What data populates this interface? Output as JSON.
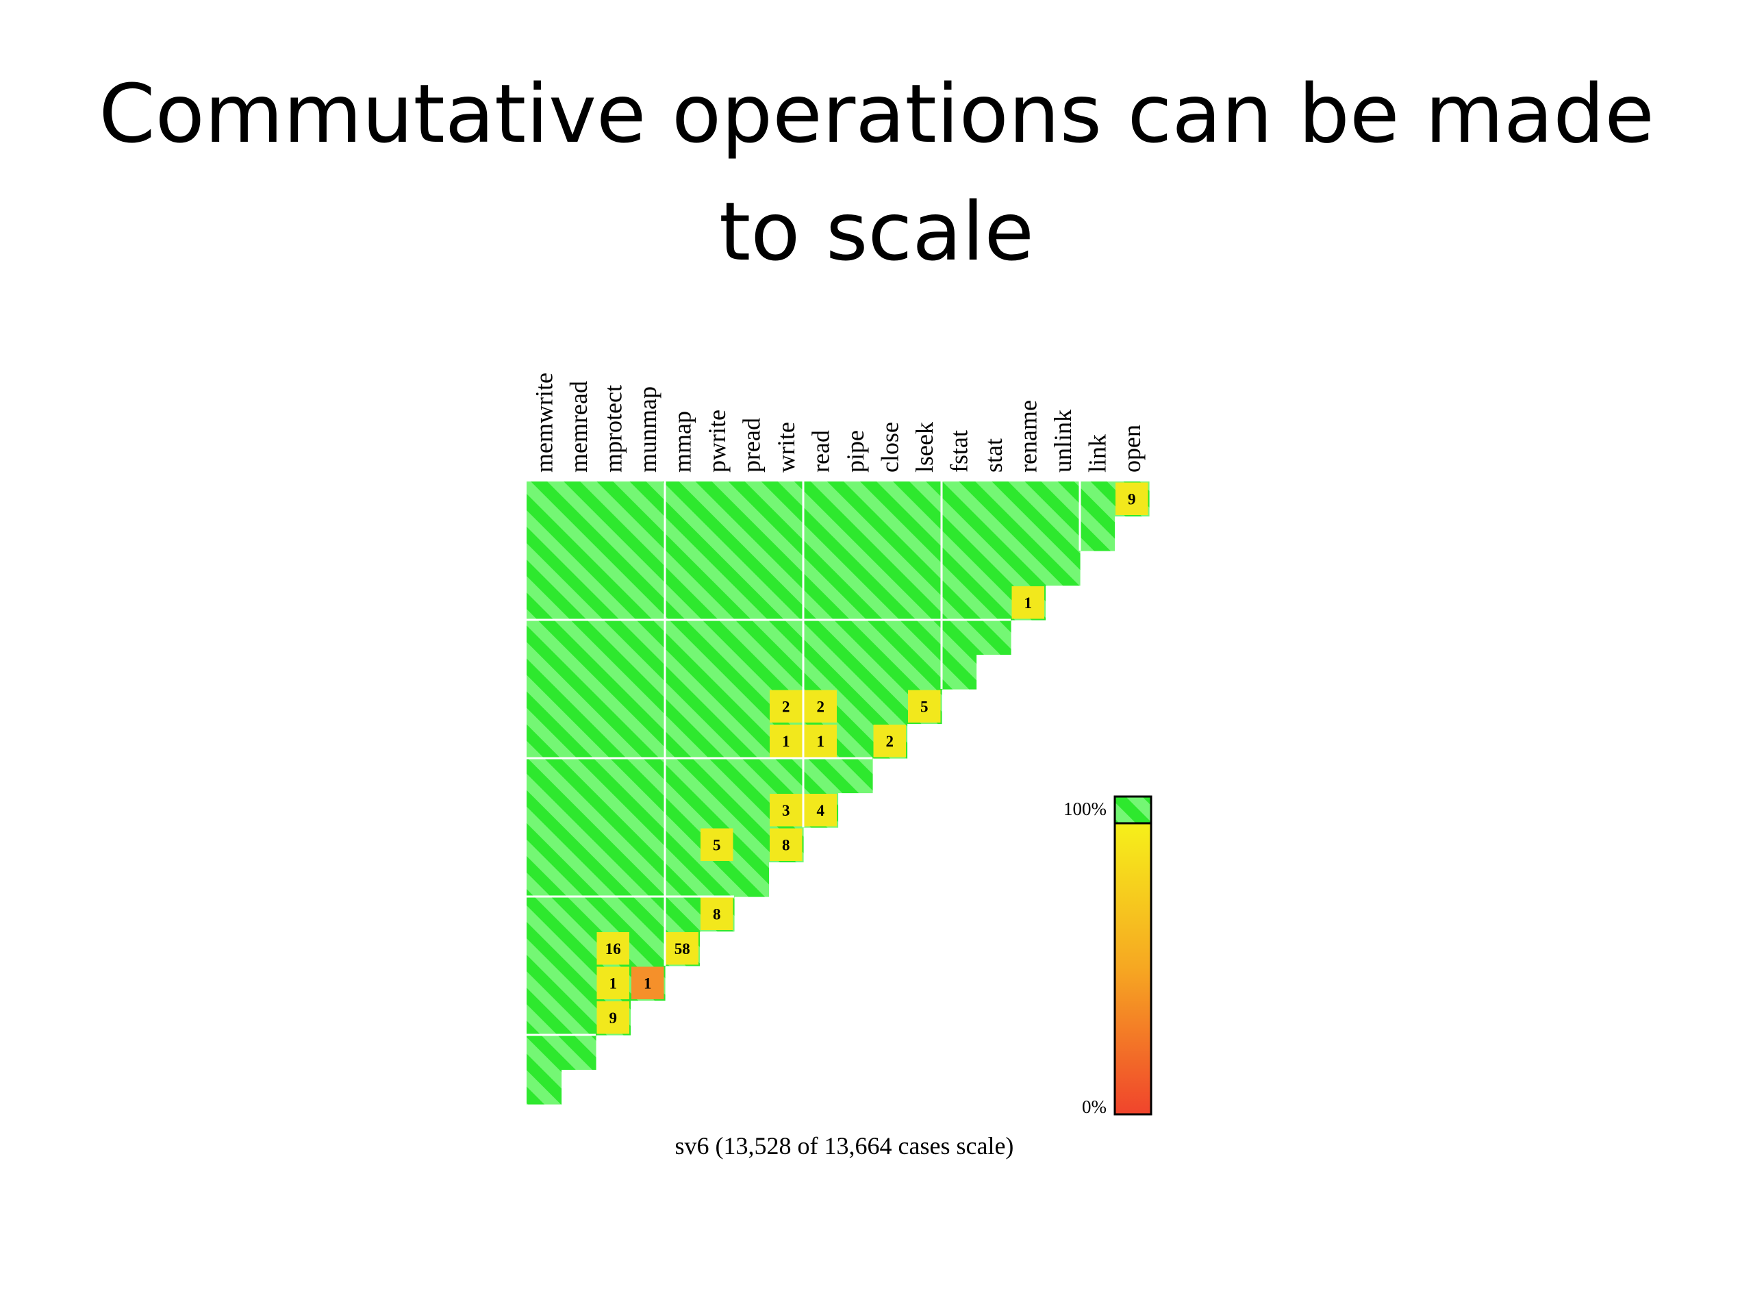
{
  "slide": {
    "title_line1": "Commutative operations can be made",
    "title_line2": "to scale"
  },
  "chart_data": {
    "type": "heatmap",
    "title": "",
    "caption": "sv6 (13,528 of 13,664 cases scale)",
    "columns": [
      "memwrite",
      "memread",
      "mprotect",
      "munmap",
      "mmap",
      "pwrite",
      "pread",
      "write",
      "read",
      "pipe",
      "close",
      "lseek",
      "fstat",
      "stat",
      "rename",
      "unlink",
      "link",
      "open"
    ],
    "rows_top_to_bottom": [
      "open",
      "link",
      "unlink",
      "rename",
      "stat",
      "fstat",
      "lseek",
      "close",
      "pipe",
      "read",
      "write",
      "pread",
      "pwrite",
      "mmap",
      "munmap",
      "mprotect",
      "memread",
      "memwrite"
    ],
    "default_cell": "scales (100%)",
    "non_scaling_cells": [
      {
        "row": "open",
        "column": "open",
        "count": 9,
        "color": "#f2e81c"
      },
      {
        "row": "rename",
        "column": "rename",
        "count": 1,
        "color": "#f2e81c"
      },
      {
        "row": "lseek",
        "column": "write",
        "count": 2,
        "color": "#f2e81c"
      },
      {
        "row": "lseek",
        "column": "read",
        "count": 2,
        "color": "#f2e81c"
      },
      {
        "row": "lseek",
        "column": "lseek",
        "count": 5,
        "color": "#f2e81c"
      },
      {
        "row": "close",
        "column": "write",
        "count": 1,
        "color": "#f2e81c"
      },
      {
        "row": "close",
        "column": "read",
        "count": 1,
        "color": "#f2e81c"
      },
      {
        "row": "close",
        "column": "close",
        "count": 2,
        "color": "#f2e81c"
      },
      {
        "row": "read",
        "column": "write",
        "count": 3,
        "color": "#f2e81c"
      },
      {
        "row": "read",
        "column": "read",
        "count": 4,
        "color": "#f2e81c"
      },
      {
        "row": "write",
        "column": "pwrite",
        "count": 5,
        "color": "#f2e81c"
      },
      {
        "row": "write",
        "column": "write",
        "count": 8,
        "color": "#f2e81c"
      },
      {
        "row": "pwrite",
        "column": "pwrite",
        "count": 8,
        "color": "#f2e81c"
      },
      {
        "row": "mmap",
        "column": "mprotect",
        "count": 16,
        "color": "#f2e81c"
      },
      {
        "row": "mmap",
        "column": "mmap",
        "count": 58,
        "color": "#f2e81c"
      },
      {
        "row": "munmap",
        "column": "mprotect",
        "count": 1,
        "color": "#f2e81c"
      },
      {
        "row": "munmap",
        "column": "munmap",
        "count": 1,
        "color": "#f5902a"
      },
      {
        "row": "mprotect",
        "column": "mprotect",
        "count": 9,
        "color": "#f2e81c"
      }
    ],
    "color_scale": {
      "top_label": "100%",
      "bottom_label": "0%",
      "scale_color": "#2ee82e",
      "colors_top_to_bottom": [
        "#f6f01a",
        "#f6a722",
        "#f0442c"
      ]
    },
    "grid_group_size": 4,
    "colors": {
      "green_a": "#2ee82e",
      "green_b": "#74f774",
      "divider": "#ffffff"
    }
  }
}
